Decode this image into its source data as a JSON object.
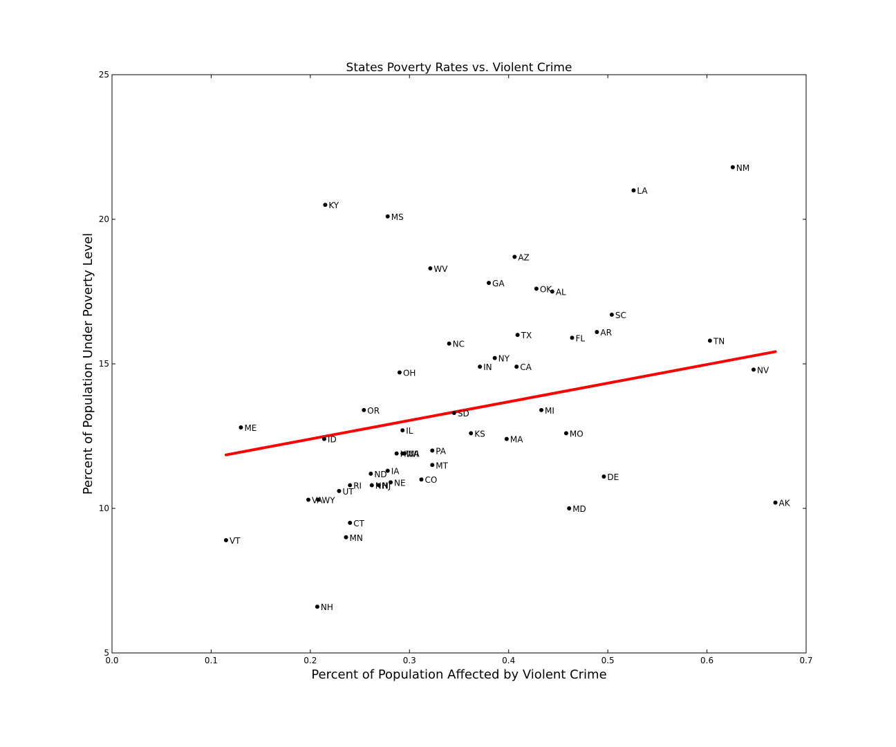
{
  "chart_data": {
    "type": "scatter",
    "title": "States Poverty Rates vs. Violent Crime",
    "xlabel": "Percent of Population Affected by Violent Crime",
    "ylabel": "Percent of Population Under Poverty Level",
    "xlim": [
      0.0,
      0.7
    ],
    "ylim": [
      5,
      25
    ],
    "xticks": [
      "0.0",
      "0.1",
      "0.2",
      "0.3",
      "0.4",
      "0.5",
      "0.6",
      "0.7"
    ],
    "yticks": [
      "5",
      "10",
      "15",
      "20",
      "25"
    ],
    "grid": false,
    "point_color": "#000000",
    "trendline": {
      "color": "#ff0000",
      "x": [
        0.115,
        0.669
      ],
      "y": [
        11.85,
        15.42
      ]
    },
    "points": [
      {
        "label": "NM",
        "x": 0.626,
        "y": 21.8
      },
      {
        "label": "LA",
        "x": 0.526,
        "y": 21.0
      },
      {
        "label": "KY",
        "x": 0.215,
        "y": 20.5
      },
      {
        "label": "MS",
        "x": 0.278,
        "y": 20.1
      },
      {
        "label": "AZ",
        "x": 0.406,
        "y": 18.7
      },
      {
        "label": "WV",
        "x": 0.321,
        "y": 18.3
      },
      {
        "label": "GA",
        "x": 0.38,
        "y": 17.8
      },
      {
        "label": "OK",
        "x": 0.428,
        "y": 17.6
      },
      {
        "label": "AL",
        "x": 0.444,
        "y": 17.5
      },
      {
        "label": "SC",
        "x": 0.504,
        "y": 16.7
      },
      {
        "label": "AR",
        "x": 0.489,
        "y": 16.1
      },
      {
        "label": "TX",
        "x": 0.409,
        "y": 16.0
      },
      {
        "label": "FL",
        "x": 0.464,
        "y": 15.9
      },
      {
        "label": "TN",
        "x": 0.603,
        "y": 15.8
      },
      {
        "label": "NC",
        "x": 0.34,
        "y": 15.7
      },
      {
        "label": "NY",
        "x": 0.386,
        "y": 15.2
      },
      {
        "label": "IN",
        "x": 0.371,
        "y": 14.9
      },
      {
        "label": "CA",
        "x": 0.408,
        "y": 14.9
      },
      {
        "label": "NV",
        "x": 0.647,
        "y": 14.8
      },
      {
        "label": "OH",
        "x": 0.29,
        "y": 14.7
      },
      {
        "label": "OR",
        "x": 0.254,
        "y": 13.4
      },
      {
        "label": "MI",
        "x": 0.433,
        "y": 13.4
      },
      {
        "label": "SD",
        "x": 0.345,
        "y": 13.3
      },
      {
        "label": "ME",
        "x": 0.13,
        "y": 12.8
      },
      {
        "label": "IL",
        "x": 0.293,
        "y": 12.7
      },
      {
        "label": "KS",
        "x": 0.362,
        "y": 12.6
      },
      {
        "label": "MO",
        "x": 0.458,
        "y": 12.6
      },
      {
        "label": "ID",
        "x": 0.214,
        "y": 12.4
      },
      {
        "label": "MA",
        "x": 0.398,
        "y": 12.4
      },
      {
        "label": "PA",
        "x": 0.323,
        "y": 12.0
      },
      {
        "label": "HI",
        "x": 0.287,
        "y": 11.9
      },
      {
        "label": "WA",
        "x": 0.293,
        "y": 11.9
      },
      {
        "label": "WI",
        "x": 0.295,
        "y": 11.9
      },
      {
        "label": "MT",
        "x": 0.323,
        "y": 11.5
      },
      {
        "label": "IA",
        "x": 0.278,
        "y": 11.3
      },
      {
        "label": "ND",
        "x": 0.261,
        "y": 11.2
      },
      {
        "label": "DE",
        "x": 0.496,
        "y": 11.1
      },
      {
        "label": "CO",
        "x": 0.312,
        "y": 11.0
      },
      {
        "label": "NE",
        "x": 0.281,
        "y": 10.9
      },
      {
        "label": "RI",
        "x": 0.24,
        "y": 10.8
      },
      {
        "label": "NH",
        "x": 0.262,
        "y": 10.8
      },
      {
        "label": "NJ",
        "x": 0.269,
        "y": 10.8
      },
      {
        "label": "UT",
        "x": 0.229,
        "y": 10.6
      },
      {
        "label": "VA",
        "x": 0.198,
        "y": 10.3
      },
      {
        "label": "WY",
        "x": 0.208,
        "y": 10.3
      },
      {
        "label": "AK",
        "x": 0.669,
        "y": 10.2
      },
      {
        "label": "MD",
        "x": 0.461,
        "y": 10.0
      },
      {
        "label": "CT",
        "x": 0.24,
        "y": 9.5
      },
      {
        "label": "MN",
        "x": 0.236,
        "y": 9.0
      },
      {
        "label": "VT",
        "x": 0.115,
        "y": 8.9
      },
      {
        "label": "NH",
        "x": 0.207,
        "y": 6.6
      }
    ]
  }
}
